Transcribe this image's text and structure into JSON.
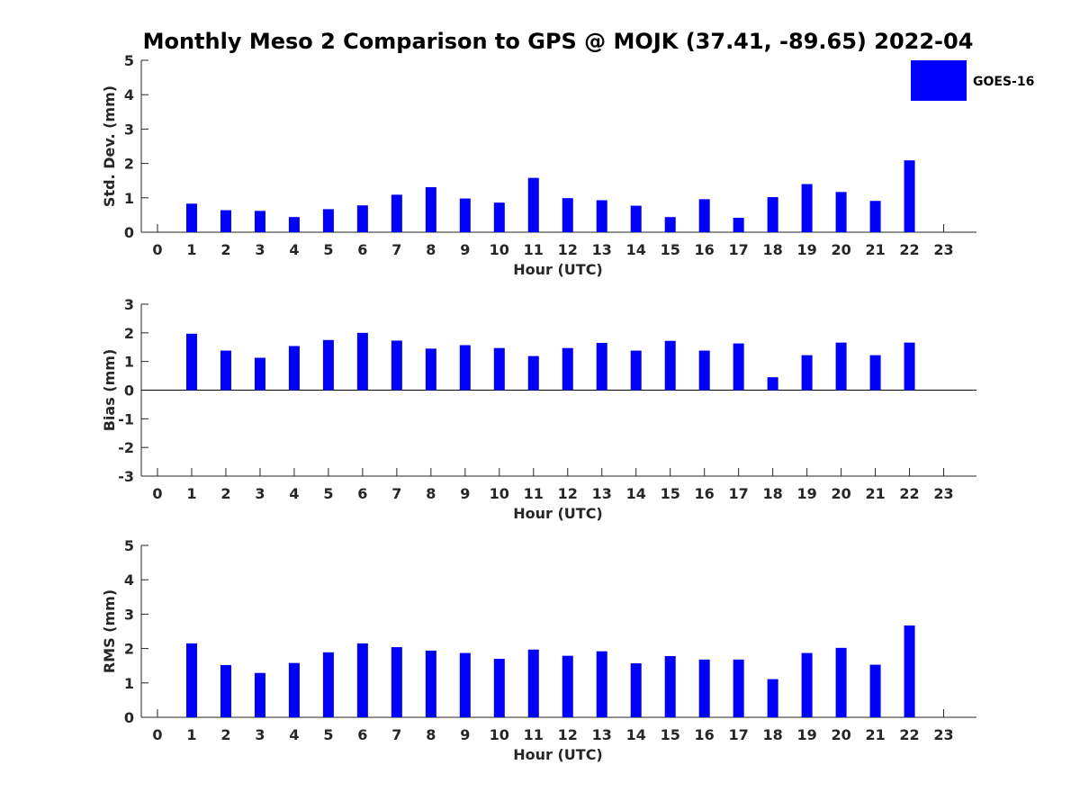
{
  "colors": {
    "bar": "#0000FF",
    "axis": "#262626",
    "background": "#FFFFFF"
  },
  "chart_data": {
    "type": "bar",
    "title": "Monthly Meso 2 Comparison to GPS @ MOJK (37.41, -89.65) 2022-04",
    "legend": {
      "entries": [
        "GOES-16"
      ],
      "placement": "top-right"
    },
    "grid": false,
    "panels": [
      {
        "ylabel": "Std. Dev. (mm)",
        "xlabel": "Hour (UTC)",
        "ylim": [
          0,
          5
        ],
        "yticks": [
          0,
          1,
          2,
          3,
          4,
          5
        ],
        "x": [
          0,
          1,
          2,
          3,
          4,
          5,
          6,
          7,
          8,
          9,
          10,
          11,
          12,
          13,
          14,
          15,
          16,
          17,
          18,
          19,
          20,
          21,
          22,
          23
        ],
        "series": [
          {
            "name": "GOES-16",
            "values": [
              null,
              0.83,
              0.64,
              0.62,
              0.44,
              0.67,
              0.78,
              1.09,
              1.31,
              0.98,
              0.86,
              1.58,
              0.99,
              0.93,
              0.77,
              0.44,
              0.96,
              0.42,
              1.02,
              1.4,
              1.17,
              0.91,
              2.09,
              null
            ]
          }
        ]
      },
      {
        "ylabel": "Bias (mm)",
        "xlabel": "Hour (UTC)",
        "ylim": [
          -3,
          3
        ],
        "yticks": [
          -3,
          -2,
          -1,
          0,
          1,
          2,
          3
        ],
        "zero_line": true,
        "x": [
          0,
          1,
          2,
          3,
          4,
          5,
          6,
          7,
          8,
          9,
          10,
          11,
          12,
          13,
          14,
          15,
          16,
          17,
          18,
          19,
          20,
          21,
          22,
          23
        ],
        "series": [
          {
            "name": "GOES-16",
            "values": [
              null,
              1.97,
              1.38,
              1.13,
              1.54,
              1.75,
              2.0,
              1.73,
              1.45,
              1.57,
              1.47,
              1.19,
              1.47,
              1.65,
              1.38,
              1.72,
              1.38,
              1.63,
              0.45,
              1.22,
              1.66,
              1.22,
              1.66,
              null
            ]
          }
        ]
      },
      {
        "ylabel": "RMS (mm)",
        "xlabel": "Hour (UTC)",
        "ylim": [
          0,
          5
        ],
        "yticks": [
          0,
          1,
          2,
          3,
          4,
          5
        ],
        "x": [
          0,
          1,
          2,
          3,
          4,
          5,
          6,
          7,
          8,
          9,
          10,
          11,
          12,
          13,
          14,
          15,
          16,
          17,
          18,
          19,
          20,
          21,
          22,
          23
        ],
        "series": [
          {
            "name": "GOES-16",
            "values": [
              null,
              2.15,
              1.52,
              1.29,
              1.58,
              1.89,
              2.15,
              2.04,
              1.94,
              1.87,
              1.7,
              1.97,
              1.79,
              1.92,
              1.57,
              1.78,
              1.68,
              1.68,
              1.11,
              1.87,
              2.02,
              1.53,
              2.67,
              null
            ]
          }
        ]
      }
    ]
  }
}
